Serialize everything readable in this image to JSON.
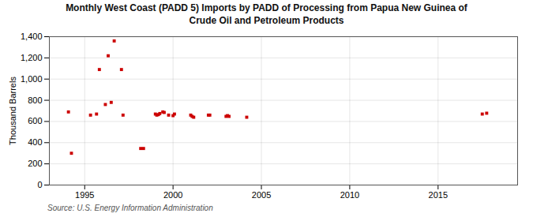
{
  "chart_data": {
    "type": "scatter",
    "title": "Monthly West Coast (PADD 5) Imports by PADD of Processing from Papua New Guinea of\nCrude Oil and Petroleum Products",
    "ylabel": "Thousand Barrels",
    "source": "Source: U.S. Energy Information Administration",
    "color": "#cc0000",
    "marker": "square",
    "grid": true,
    "xlim": [
      1993.0,
      2019.5
    ],
    "ylim": [
      0,
      1400
    ],
    "xticks": [
      1995,
      2000,
      2005,
      2010,
      2015
    ],
    "yticks": [
      0,
      200,
      400,
      600,
      800,
      {
        "value": 1000,
        "label": "1,000"
      },
      {
        "value": 1200,
        "label": "1,200"
      },
      {
        "value": 1400,
        "label": "1,400"
      }
    ],
    "x": [
      1994.08,
      1994.25,
      1995.33,
      1995.67,
      1995.83,
      1996.17,
      1996.33,
      1996.5,
      1996.67,
      1997.08,
      1997.17,
      1998.17,
      1998.33,
      1999.0,
      1999.08,
      1999.17,
      1999.25,
      1999.42,
      1999.5,
      1999.75,
      2000.0,
      2000.08,
      2001.0,
      2001.08,
      2001.17,
      2002.0,
      2002.08,
      2003.0,
      2003.08,
      2003.17,
      2004.17,
      2017.5,
      2017.75
    ],
    "values": [
      690,
      300,
      660,
      670,
      1090,
      760,
      1220,
      780,
      1360,
      1090,
      660,
      345,
      345,
      670,
      660,
      665,
      675,
      690,
      685,
      660,
      655,
      670,
      660,
      648,
      640,
      660,
      660,
      648,
      655,
      648,
      640,
      670,
      678
    ]
  }
}
